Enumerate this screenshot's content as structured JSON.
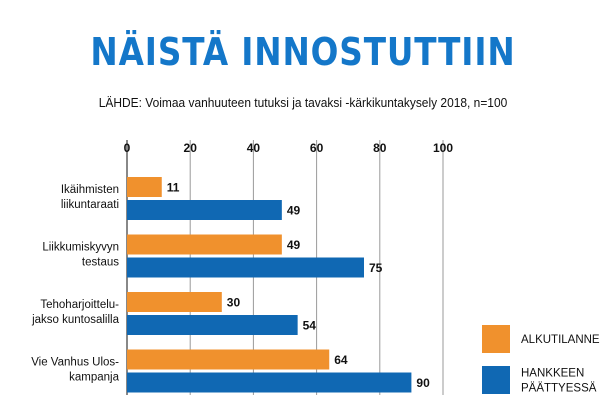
{
  "title": "NÄISTÄ INNOSTUTTIIN",
  "source": "LÄHDE:  Voimaa vanhuuteen tutuksi ja tavaksi -kärkikuntakysely 2018, n=100",
  "chart_data": {
    "type": "bar",
    "orientation": "horizontal",
    "xlim": [
      0,
      100
    ],
    "ticks": [
      "0",
      "20",
      "40",
      "60",
      "80",
      "100"
    ],
    "tick_values": [
      0,
      20,
      40,
      60,
      80,
      100
    ],
    "grid": true,
    "legend_position": "bottom-right",
    "categories": [
      [
        "Ikäihmisten",
        "liikuntaraati"
      ],
      [
        "Liikkumiskyvyn",
        "testaus"
      ],
      [
        "Tehoharjoittelu-",
        "jakso kuntosalilla"
      ],
      [
        "Vie Vanhus Ulos-",
        "kampanja"
      ]
    ],
    "series": [
      {
        "name": [
          "ALKUTILANNE"
        ],
        "color": "#f0912d",
        "values": [
          11,
          49,
          30,
          64
        ]
      },
      {
        "name": [
          "HANKKEEN",
          "PÄÄTTYESSÄ"
        ],
        "color": "#1068b3",
        "values": [
          49,
          75,
          54,
          90
        ]
      }
    ]
  }
}
